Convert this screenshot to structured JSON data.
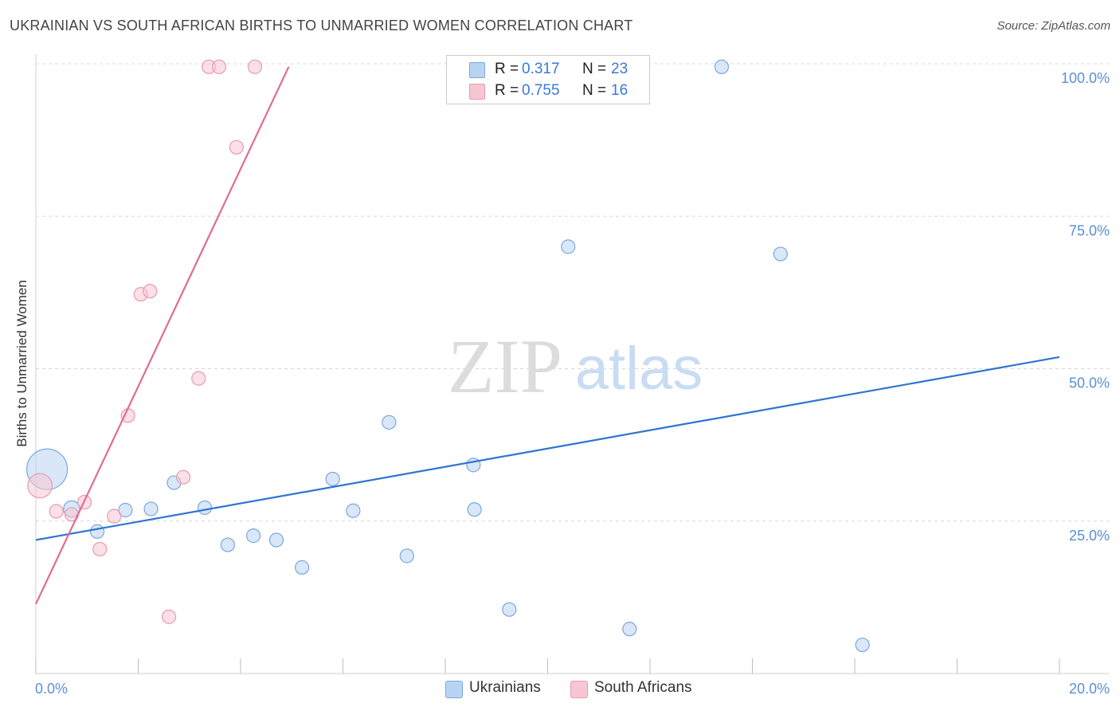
{
  "title": "UKRAINIAN VS SOUTH AFRICAN BIRTHS TO UNMARRIED WOMEN CORRELATION CHART",
  "source": "Source: ZipAtlas.com",
  "watermark": {
    "zip": "ZIP",
    "atlas": "atlas"
  },
  "colors": {
    "blue_fill": "#b9d3f3",
    "blue_stroke": "#7aa7e0",
    "blue_line": "#2f74d0",
    "pink_fill": "#f8c6d3",
    "pink_stroke": "#e89ab0",
    "pink_line": "#e06b96",
    "grid": "#d8d8d8",
    "axis_label": "#5b8fd6"
  },
  "legend": {
    "rows": [
      {
        "r_label": "R =",
        "r_value": "0.317",
        "n_label": "N =",
        "n_value": "23"
      },
      {
        "r_label": "R =",
        "r_value": "0.755",
        "n_label": "N =",
        "n_value": "16"
      }
    ]
  },
  "chart_data": {
    "type": "scatter",
    "title": "UKRAINIAN VS SOUTH AFRICAN BIRTHS TO UNMARRIED WOMEN CORRELATION CHART",
    "xlabel": "",
    "ylabel": "Births to Unmarried Women",
    "xlim": [
      0,
      20
    ],
    "ylim": [
      0,
      100
    ],
    "x_tick_labels": [
      "0.0%",
      "20.0%"
    ],
    "y_tick_labels": [
      "100.0%",
      "75.0%",
      "50.0%",
      "25.0%"
    ],
    "y_ticks": [
      100,
      75,
      50,
      25
    ],
    "grid": true,
    "legend_position": "bottom",
    "series": [
      {
        "name": "Ukrainians",
        "color": "#b9d3f3",
        "points": [
          {
            "x": 0.22,
            "y": 33.5,
            "s": 3
          },
          {
            "x": 0.7,
            "y": 27.0,
            "s": 1.2
          },
          {
            "x": 1.2,
            "y": 23.3,
            "s": 1
          },
          {
            "x": 1.75,
            "y": 26.8,
            "s": 1
          },
          {
            "x": 2.25,
            "y": 27.0,
            "s": 1
          },
          {
            "x": 2.7,
            "y": 31.3,
            "s": 1
          },
          {
            "x": 3.3,
            "y": 27.2,
            "s": 1
          },
          {
            "x": 3.75,
            "y": 21.1,
            "s": 1
          },
          {
            "x": 4.25,
            "y": 22.6,
            "s": 1
          },
          {
            "x": 4.7,
            "y": 21.9,
            "s": 1
          },
          {
            "x": 5.2,
            "y": 17.4,
            "s": 1
          },
          {
            "x": 5.8,
            "y": 31.9,
            "s": 1
          },
          {
            "x": 6.2,
            "y": 26.7,
            "s": 1
          },
          {
            "x": 6.9,
            "y": 41.2,
            "s": 1
          },
          {
            "x": 7.25,
            "y": 19.3,
            "s": 1
          },
          {
            "x": 8.55,
            "y": 34.2,
            "s": 1
          },
          {
            "x": 8.57,
            "y": 26.9,
            "s": 1
          },
          {
            "x": 9.25,
            "y": 10.5,
            "s": 1
          },
          {
            "x": 10.4,
            "y": 70.0,
            "s": 1
          },
          {
            "x": 11.6,
            "y": 7.3,
            "s": 1
          },
          {
            "x": 13.4,
            "y": 99.5,
            "s": 1
          },
          {
            "x": 14.55,
            "y": 68.8,
            "s": 1
          },
          {
            "x": 16.15,
            "y": 4.7,
            "s": 1
          }
        ],
        "trendline": {
          "x": [
            0,
            20
          ],
          "y": [
            21.9,
            51.9
          ]
        }
      },
      {
        "name": "South Africans",
        "color": "#f8c6d3",
        "points": [
          {
            "x": 0.08,
            "y": 30.8,
            "s": 1.8
          },
          {
            "x": 0.4,
            "y": 26.6,
            "s": 1
          },
          {
            "x": 0.7,
            "y": 26.1,
            "s": 1
          },
          {
            "x": 0.95,
            "y": 28.1,
            "s": 1
          },
          {
            "x": 1.25,
            "y": 20.4,
            "s": 1
          },
          {
            "x": 1.53,
            "y": 25.8,
            "s": 1
          },
          {
            "x": 1.8,
            "y": 42.3,
            "s": 1
          },
          {
            "x": 2.05,
            "y": 62.2,
            "s": 1
          },
          {
            "x": 2.23,
            "y": 62.7,
            "s": 1
          },
          {
            "x": 2.6,
            "y": 9.3,
            "s": 1
          },
          {
            "x": 2.88,
            "y": 32.2,
            "s": 1
          },
          {
            "x": 3.18,
            "y": 48.4,
            "s": 1
          },
          {
            "x": 3.38,
            "y": 99.5,
            "s": 1
          },
          {
            "x": 3.58,
            "y": 99.5,
            "s": 1
          },
          {
            "x": 3.92,
            "y": 86.3,
            "s": 1
          },
          {
            "x": 4.28,
            "y": 99.5,
            "s": 1
          }
        ],
        "trendline": {
          "x": [
            0,
            4.94
          ],
          "y": [
            11.4,
            99.5
          ]
        }
      }
    ]
  }
}
